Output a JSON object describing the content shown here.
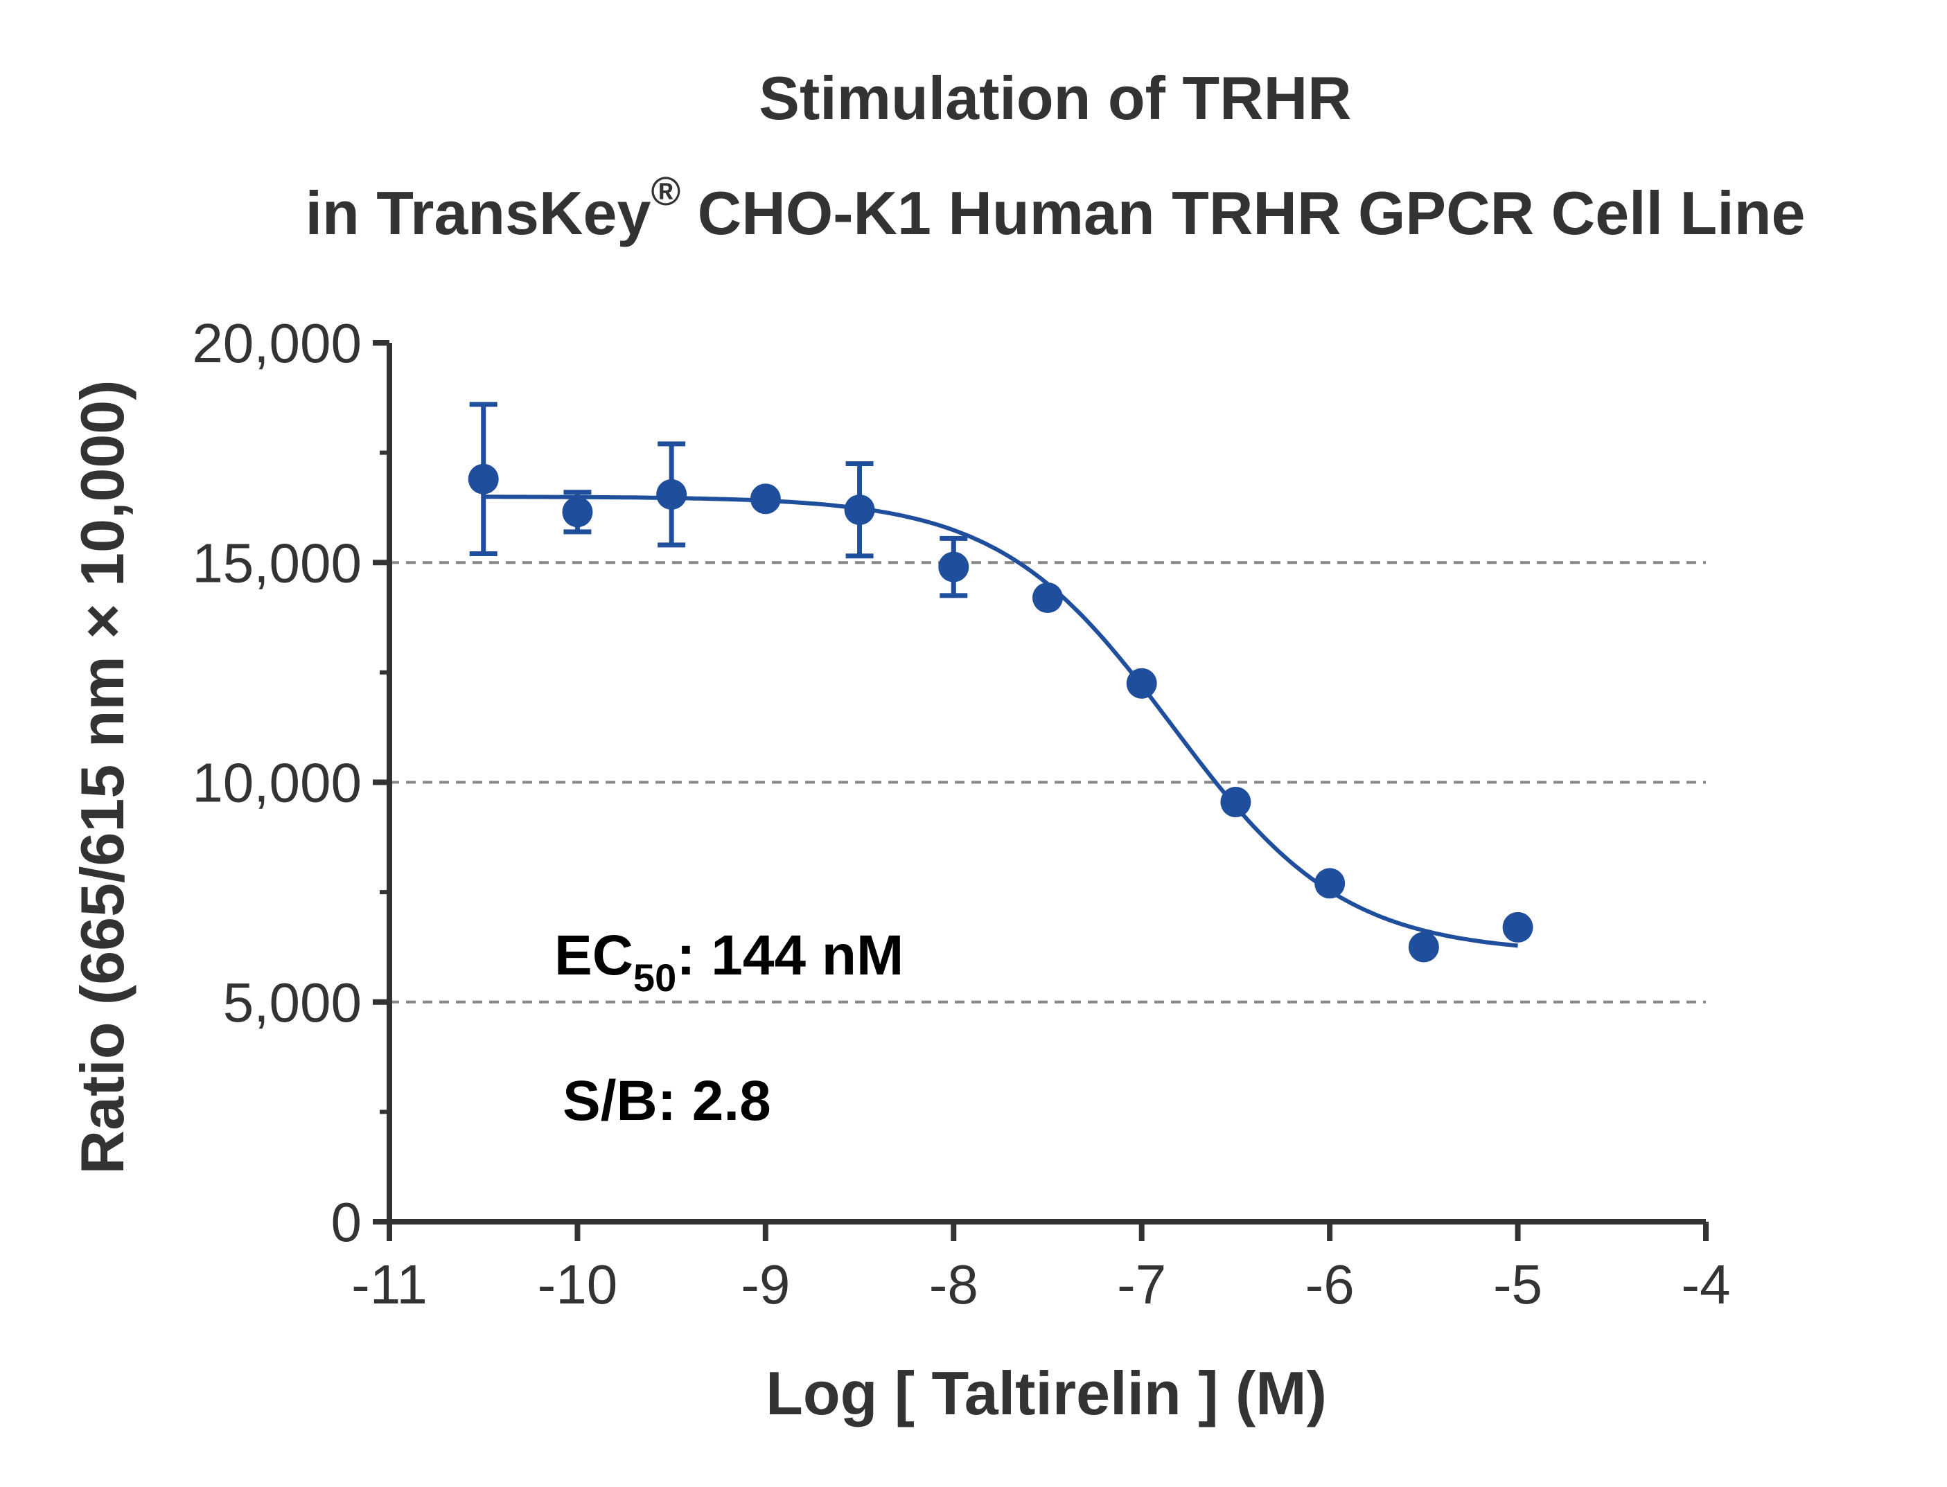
{
  "chart_data": {
    "type": "scatter",
    "title_line1": "Stimulation of  TRHR",
    "title_line2_pre": "in TransKey",
    "title_line2_sup": "®",
    "title_line2_post": " CHO-K1 Human TRHR GPCR Cell Line",
    "xlabel": "Log [ Taltirelin ]  (M)",
    "ylabel": "Ratio (665/615 nm × 10,000)",
    "xlim": [
      -11,
      -4
    ],
    "ylim": [
      0,
      20000
    ],
    "x_ticks": [
      -11,
      -10,
      -9,
      -8,
      -7,
      -6,
      -5,
      -4
    ],
    "x_tick_labels": [
      "-11",
      "-10",
      "-9",
      "-8",
      "-7",
      "-6",
      "-5",
      "-4"
    ],
    "y_ticks": [
      0,
      5000,
      10000,
      15000,
      20000
    ],
    "y_tick_labels": [
      "0",
      "5,000",
      "10,000",
      "15,000",
      "20,000"
    ],
    "y_minor_ticks": [
      2500,
      7500,
      12500,
      17500
    ],
    "grid": {
      "y_dashed_at": [
        5000,
        10000,
        15000
      ]
    },
    "color": "#1f4e9c",
    "series": [
      {
        "x": [
          -10.5,
          -10,
          -9.5,
          -9,
          -8.5,
          -8,
          -7.5,
          -7,
          -6.5,
          -6,
          -5.5,
          -5
        ],
        "y": [
          16900,
          16150,
          16550,
          16450,
          16200,
          14900,
          14200,
          12250,
          9550,
          7700,
          6250,
          6700
        ],
        "err": [
          1700,
          450,
          1150,
          0,
          1050,
          650,
          0,
          0,
          0,
          0,
          0,
          0
        ]
      }
    ],
    "fit": {
      "bottom": 6100,
      "top": 16500,
      "log_ec50": -6.84,
      "hill": 0.95,
      "x_range": [
        -10.5,
        -5
      ]
    },
    "annotations": {
      "ec50_prefix": "EC",
      "ec50_sub": "50",
      "ec50_rest": ": 144 nM",
      "sb": "S/B: 2.8"
    }
  }
}
